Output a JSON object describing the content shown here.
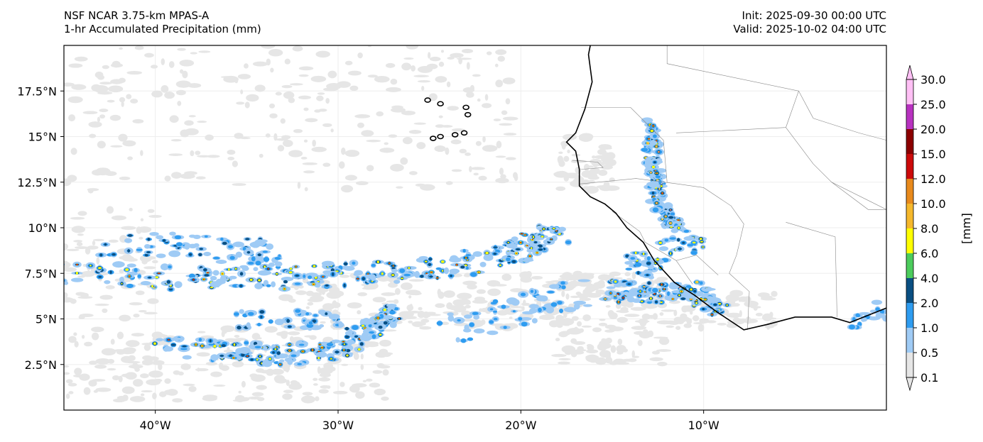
{
  "header": {
    "model_line": "NSF NCAR 3.75-km MPAS-A",
    "field_line": "1-hr Accumulated Precipitation (mm)",
    "init_line": "Init: 2025-09-30 00:00 UTC",
    "valid_line": "Valid: 2025-10-02 04:00 UTC"
  },
  "map": {
    "lon_range": [
      -45,
      0
    ],
    "lat_range": [
      0,
      20
    ],
    "lon_ticks": [
      {
        "value": -40,
        "label": "40°W"
      },
      {
        "value": -30,
        "label": "30°W"
      },
      {
        "value": -20,
        "label": "20°W"
      },
      {
        "value": -10,
        "label": "10°W"
      }
    ],
    "lat_ticks": [
      {
        "value": 17.5,
        "label": "17.5°N"
      },
      {
        "value": 15,
        "label": "15°N"
      },
      {
        "value": 12.5,
        "label": "12.5°N"
      },
      {
        "value": 10,
        "label": "10°N"
      },
      {
        "value": 7.5,
        "label": "7.5°N"
      },
      {
        "value": 5,
        "label": "5°N"
      },
      {
        "value": 2.5,
        "label": "2.5°N"
      }
    ],
    "grid": true
  },
  "colorbar": {
    "unit_label": "[mm]",
    "levels": [
      "0.1",
      "0.5",
      "1.0",
      "2.0",
      "4.0",
      "6.0",
      "8.0",
      "10.0",
      "12.0",
      "15.0",
      "20.0",
      "25.0",
      "30.0"
    ],
    "colors": [
      "#e6e6e6",
      "#9fcbf5",
      "#2e9cf0",
      "#0a4f82",
      "#4ccc5c",
      "#ffff00",
      "#f5b82c",
      "#e88a1c",
      "#cc0a0a",
      "#8c0000",
      "#b832c0",
      "#ffc0f5"
    ]
  }
}
